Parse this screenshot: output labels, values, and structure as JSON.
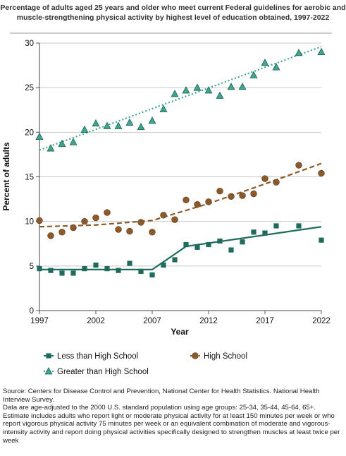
{
  "chart_data": {
    "type": "scatter",
    "title": "Percentage of adults aged 25 years and older who meet current Federal guidelines for aerobic and muscle-strengthening physical activity by highest level of education obtained, 1997-2022",
    "xlabel": "Year",
    "ylabel": "Percent of adults",
    "xlim": [
      1997,
      2022
    ],
    "ylim": [
      0,
      30
    ],
    "xticks": [
      1997,
      2002,
      2007,
      2012,
      2017,
      2022
    ],
    "yticks": [
      0,
      5,
      10,
      15,
      20,
      25,
      30
    ],
    "grid": "horizontal",
    "legend": "bottom",
    "series": [
      {
        "name": "Less than High School",
        "marker": "square",
        "color": "#1f6b5e",
        "x": [
          1997,
          1998,
          1999,
          2000,
          2001,
          2002,
          2003,
          2004,
          2005,
          2006,
          2007,
          2008,
          2009,
          2010,
          2011,
          2012,
          2013,
          2014,
          2015,
          2016,
          2017,
          2018,
          2020,
          2022
        ],
        "y": [
          4.7,
          4.5,
          4.2,
          4.2,
          4.7,
          5.1,
          4.7,
          4.5,
          5.3,
          4.4,
          4.0,
          5.1,
          5.7,
          7.4,
          7.1,
          7.4,
          7.8,
          6.8,
          7.7,
          8.8,
          8.7,
          9.5,
          9.5,
          7.9
        ],
        "trend_x": [
          1997,
          2007,
          2010,
          2022
        ],
        "trend_y": [
          4.6,
          4.6,
          7.2,
          9.4
        ],
        "trend_style": "solid"
      },
      {
        "name": "High School",
        "marker": "circle",
        "color": "#8b5a2b",
        "x": [
          1997,
          1998,
          1999,
          2000,
          2001,
          2002,
          2003,
          2004,
          2005,
          2006,
          2007,
          2008,
          2009,
          2010,
          2011,
          2012,
          2013,
          2014,
          2015,
          2016,
          2017,
          2018,
          2020,
          2022
        ],
        "y": [
          10.1,
          8.4,
          8.8,
          9.3,
          10.0,
          10.4,
          11.0,
          9.1,
          8.9,
          9.9,
          8.8,
          10.7,
          10.2,
          12.4,
          11.9,
          12.2,
          13.4,
          12.8,
          12.9,
          13.1,
          14.8,
          14.4,
          16.3,
          15.4
        ],
        "trend_x": [
          1997,
          2002,
          2007,
          2012,
          2017,
          2022
        ],
        "trend_y": [
          9.4,
          9.6,
          10.1,
          12.0,
          14.2,
          16.5
        ],
        "trend_style": "dashed"
      },
      {
        "name": "Greater than High School",
        "marker": "triangle",
        "color": "#3fa58f",
        "x": [
          1997,
          1998,
          1999,
          2000,
          2001,
          2002,
          2003,
          2004,
          2005,
          2006,
          2007,
          2008,
          2009,
          2010,
          2011,
          2012,
          2013,
          2014,
          2015,
          2016,
          2017,
          2018,
          2020,
          2022
        ],
        "y": [
          19.5,
          18.2,
          18.7,
          18.9,
          20.3,
          21.0,
          20.7,
          20.7,
          21.1,
          20.6,
          21.3,
          22.6,
          24.3,
          24.7,
          25.0,
          24.7,
          24.1,
          25.1,
          25.1,
          26.4,
          27.8,
          27.3,
          28.9,
          29.0
        ],
        "trend_x": [
          1997,
          2022
        ],
        "trend_y": [
          18.0,
          29.6
        ],
        "trend_style": "dotted"
      }
    ]
  },
  "source": {
    "line1": "Source: Centers for Disease Control and Prevention, National Center for Health Statistics. National Health Interview Survey.",
    "line2": "Data are age-adjusted to the 2000 U.S. standard population using age groups: 25-34, 35-44, 45-64, 65+.",
    "line3": "Estimate includes adults who report light or moderate physical activity for at least 150 minutes per week or who report vigorous physical activity 75 minutes per week or an equivalent combination of moderate and vigorous-intensity activity and report doing physical activities specifically designed to strengthen muscles at least twice per week"
  }
}
